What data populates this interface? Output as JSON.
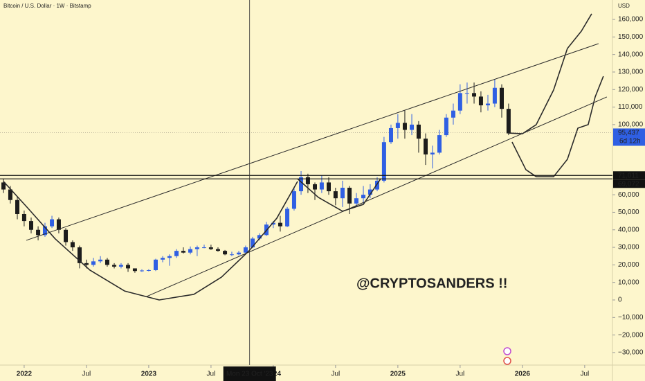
{
  "chart_data": {
    "type": "candlestick",
    "title": "Bitcoin / U.S. Dollar · 1W · Bitstamp",
    "currency": "USD",
    "xlim": [
      2021.806,
      2026.723
    ],
    "ylim": [
      -37140,
      171080
    ],
    "xticks": [
      2022,
      {
        "value": 2022.5,
        "label": "Jul"
      },
      2023,
      {
        "value": 2023.5,
        "label": "Jul"
      },
      2024,
      {
        "value": 2024.5,
        "label": "Jul"
      },
      2025,
      {
        "value": 2025.5,
        "label": "Jul"
      },
      2026,
      {
        "value": 2026.5,
        "label": "Jul"
      }
    ],
    "yticks": [
      {
        "value": 160000,
        "label": "160,000"
      },
      {
        "value": 150000,
        "label": "150,000"
      },
      {
        "value": 140000,
        "label": "140,000"
      },
      {
        "value": 130000,
        "label": "130,000"
      },
      {
        "value": 120000,
        "label": "120,000"
      },
      {
        "value": 110000,
        "label": "110,000"
      },
      {
        "value": 100000,
        "label": "100,000"
      },
      {
        "value": 60000,
        "label": "60,000"
      },
      {
        "value": 50000,
        "label": "50,000"
      },
      {
        "value": 40000,
        "label": "40,000"
      },
      {
        "value": 30000,
        "label": "30,000"
      },
      {
        "value": 20000,
        "label": "20,000"
      },
      {
        "value": 10000,
        "label": "10,000"
      },
      0,
      {
        "value": -10000,
        "label": "−10,000"
      },
      {
        "value": -20000,
        "label": "−20,000"
      },
      {
        "value": -30000,
        "label": "−30,000"
      }
    ],
    "up_color": "#2f5fe3",
    "down_color": "#1c1c1c",
    "x": [
      2021.834,
      2021.889,
      2021.945,
      2022.0,
      2022.056,
      2022.112,
      2022.167,
      2022.223,
      2022.278,
      2022.334,
      2022.389,
      2022.445,
      2022.5,
      2022.556,
      2022.612,
      2022.667,
      2022.723,
      2022.778,
      2022.834,
      2022.889,
      2022.945,
      2023.0,
      2023.056,
      2023.112,
      2023.167,
      2023.223,
      2023.278,
      2023.334,
      2023.389,
      2023.445,
      2023.5,
      2023.556,
      2023.612,
      2023.667,
      2023.723,
      2023.778,
      2023.834,
      2023.889,
      2023.945,
      2024.0,
      2024.056,
      2024.112,
      2024.167,
      2024.223,
      2024.278,
      2024.334,
      2024.389,
      2024.445,
      2024.5,
      2024.556,
      2024.612,
      2024.667,
      2024.723,
      2024.778,
      2024.834,
      2024.889,
      2024.945,
      2025.0,
      2025.056,
      2025.112,
      2025.167,
      2025.223,
      2025.278,
      2025.334,
      2025.389,
      2025.445,
      2025.5,
      2025.556,
      2025.612,
      2025.667,
      2025.723,
      2025.778,
      2025.834,
      2025.889
    ],
    "open": [
      67000,
      63000,
      57000,
      49000,
      45000,
      40000,
      37000,
      42000,
      46000,
      40000,
      33000,
      30000,
      21000,
      20000,
      22000,
      23000,
      20000,
      19000,
      20000,
      18000,
      16500,
      16800,
      17000,
      23000,
      24000,
      25000,
      28000,
      27000,
      29000,
      30000,
      30000,
      29000,
      28000,
      26000,
      26000,
      27000,
      30000,
      35000,
      37000,
      43000,
      44000,
      42000,
      52000,
      62000,
      70000,
      66000,
      63000,
      67000,
      62000,
      58000,
      64000,
      55000,
      58000,
      60000,
      63000,
      68000,
      90000,
      98000,
      101000,
      97000,
      100000,
      92000,
      83000,
      84000,
      94000,
      104000,
      108000,
      118000,
      118000,
      116000,
      111000,
      112000,
      121000,
      109000
    ],
    "high": [
      69000,
      65000,
      59000,
      51000,
      47000,
      42000,
      44000,
      48000,
      47000,
      41000,
      34000,
      31000,
      23000,
      24000,
      25000,
      24000,
      21000,
      21000,
      21000,
      18000,
      17500,
      17500,
      23500,
      25000,
      26000,
      29000,
      30000,
      30500,
      31000,
      31500,
      31500,
      30000,
      28500,
      27500,
      28000,
      31000,
      36000,
      38000,
      44500,
      45000,
      48000,
      53000,
      64000,
      73500,
      72000,
      67000,
      71000,
      70000,
      64000,
      68000,
      65000,
      61000,
      65000,
      66000,
      70000,
      93000,
      100000,
      106000,
      108000,
      106000,
      102000,
      95000,
      88000,
      97000,
      106000,
      112000,
      123000,
      124000,
      124000,
      119000,
      117000,
      126000,
      123000,
      112000
    ],
    "low": [
      61000,
      55000,
      46000,
      42000,
      38000,
      34000,
      36000,
      41000,
      38000,
      31000,
      28000,
      18000,
      18000,
      19000,
      21000,
      19000,
      18000,
      18000,
      16000,
      15500,
      16000,
      16300,
      16500,
      21500,
      19500,
      24000,
      26500,
      26000,
      25000,
      29500,
      28500,
      27500,
      25500,
      25000,
      25500,
      26500,
      29500,
      34000,
      36500,
      41000,
      39000,
      41500,
      51000,
      60000,
      61000,
      57000,
      61000,
      60000,
      54000,
      53000,
      49000,
      53000,
      55000,
      58000,
      62000,
      67000,
      89000,
      92000,
      92000,
      94000,
      84000,
      77000,
      75000,
      83000,
      93000,
      100000,
      106000,
      112000,
      112000,
      107000,
      108000,
      110000,
      104000,
      94000
    ],
    "close": [
      63000,
      57000,
      49000,
      45000,
      40000,
      37000,
      42000,
      46000,
      40000,
      33000,
      30000,
      21000,
      20000,
      22000,
      23000,
      20000,
      19000,
      20000,
      18000,
      16500,
      16800,
      17000,
      23000,
      24000,
      25000,
      28000,
      27000,
      29000,
      30000,
      30000,
      29000,
      28000,
      26000,
      26000,
      27000,
      30000,
      35000,
      37000,
      43000,
      44000,
      42000,
      52000,
      62000,
      70000,
      66000,
      63000,
      67000,
      62000,
      58000,
      64000,
      55000,
      58000,
      60000,
      63000,
      68000,
      90000,
      98000,
      101000,
      97000,
      100000,
      92000,
      83000,
      84000,
      94000,
      104000,
      108000,
      118000,
      118000,
      116000,
      111000,
      112000,
      121000,
      109000,
      95000
    ],
    "levels": [
      {
        "value": 71011,
        "label": "71,011"
      },
      {
        "value": 69072,
        "label": "69,072"
      }
    ],
    "last_price": {
      "value": 95437,
      "label": "95,437"
    },
    "countdown": "6d 12h",
    "crosshair": {
      "x": 2023.81,
      "label": "Mon 23 Oct '23"
    },
    "drawings": [
      {
        "x": [
          2022.017,
          2026.611
        ],
        "y": [
          34000,
          146200
        ]
      },
      {
        "x": [
          2022.984,
          2026.678
        ],
        "y": [
          2000,
          115800
        ]
      },
      {
        "x": [
          2021.834,
          2022.028,
          2022.25,
          2022.528,
          2022.806,
          2023.084,
          2023.362,
          2023.584,
          2023.806,
          2024.028,
          2024.195
        ],
        "y": [
          67600,
          52500,
          34800,
          17000,
          5100,
          0,
          3200,
          13000,
          28100,
          46600,
          67600
        ]
      },
      {
        "x": [
          2024.195,
          2024.362,
          2024.556,
          2024.723,
          2024.862
        ],
        "y": [
          69100,
          58500,
          50600,
          54500,
          69100
        ]
      },
      {
        "x": [
          2025.889,
          2026.0,
          2026.111,
          2026.25,
          2026.361,
          2026.473,
          2026.556
        ],
        "y": [
          95200,
          94800,
          100000,
          119700,
          143400,
          153300,
          163200
        ]
      },
      {
        "x": [
          2025.917,
          2026.028,
          2026.111,
          2026.25,
          2026.361,
          2026.445,
          2026.528,
          2026.584,
          2026.65
        ],
        "y": [
          90100,
          74300,
          70300,
          70300,
          80200,
          98000,
          100000,
          115800,
          127600
        ]
      }
    ],
    "annotation": {
      "text": "@CRYPTOSANDERS !!",
      "color": "#f08a24"
    }
  }
}
